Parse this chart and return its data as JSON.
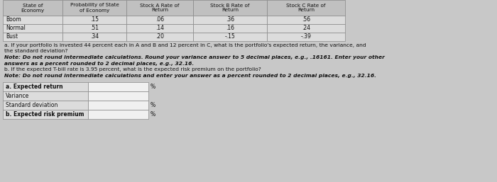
{
  "table_headers": [
    "State of\nEconomy",
    "Probability of State\nof Economy",
    "Stock A Rate of\nReturn",
    "Stock B Rate of\nReturn",
    "Stock C Rate of\nReturn"
  ],
  "table_rows": [
    [
      "Boom",
      ".15",
      ".06",
      ".36",
      ".56"
    ],
    [
      "Normal",
      ".51",
      ".14",
      ".16",
      ".24"
    ],
    [
      "Bust",
      ".34",
      ".20",
      "-.15",
      "-.39"
    ]
  ],
  "question_a_normal": "a. If your portfolio is invested 44 percent each in A and B and 12 percent in C, what is the portfolio's expected return, the variance, and",
  "question_a_normal2": "the standard deviation?",
  "question_a_bold1": "Note: Do not round intermediate calculations. Round your variance answer to 5 decimal places, e.g., .16161. Enter your other",
  "question_a_bold2": "answers as a percent rounded to 2 decimal places, e.g., 32.16.",
  "question_b_normal": "b. If the expected T-bill rate is 3.95 percent, what is the expected risk premium on the portfolio?",
  "question_b_bold": "Note: Do not round intermediate calculations and enter your answer as a percent rounded to 2 decimal places, e.g., 32.16.",
  "answer_rows": [
    {
      "label": "a. Expected return",
      "has_pct": true,
      "bold": true
    },
    {
      "label": "Variance",
      "has_pct": false,
      "bold": false
    },
    {
      "label": "Standard deviation",
      "has_pct": true,
      "bold": false
    },
    {
      "label": "b. Expected risk premium",
      "has_pct": true,
      "bold": true
    }
  ],
  "bg_color": "#c8c8c8",
  "table_bg": "#dcdcdc",
  "header_bg": "#c0c0c0",
  "input_bg": "#f0f0f0",
  "border_color": "#888888",
  "text_color": "#111111"
}
